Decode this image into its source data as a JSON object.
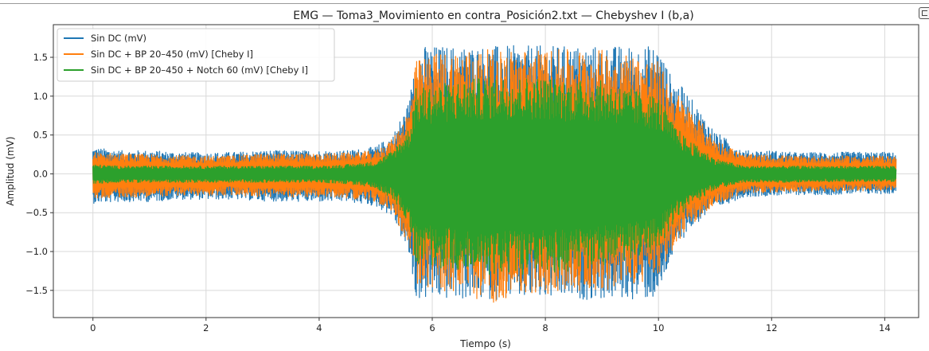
{
  "colors": {
    "sin_dc": "#1f77b4",
    "bp": "#ff7f0e",
    "notch": "#2ca02c",
    "grid": "#d9d9d9",
    "axes": "#333333"
  },
  "toolbar": {
    "corner_icon": "copy-icon"
  },
  "chart_data": {
    "type": "line",
    "title": "EMG — Toma3_Movimiento en contra_Posición2.txt — Chebyshev I (b,a)",
    "xlabel": "Tiempo (s)",
    "ylabel": "Amplitud (mV)",
    "xlim": [
      -0.7,
      14.6
    ],
    "ylim": [
      -1.85,
      1.92
    ],
    "grid": true,
    "legend_position": "top-left",
    "x_ticks": [
      0,
      2,
      4,
      6,
      8,
      10,
      12,
      14
    ],
    "x_tick_labels": [
      "0",
      "2",
      "4",
      "6",
      "8",
      "10",
      "12",
      "14"
    ],
    "y_ticks": [
      -1.5,
      -1.0,
      -0.5,
      0.0,
      0.5,
      1.0,
      1.5
    ],
    "y_tick_labels": [
      "−1.5",
      "−1.0",
      "−0.5",
      "0.0",
      "0.5",
      "1.0",
      "1.5"
    ],
    "series": [
      {
        "name": "Sin DC (mV)",
        "color": "#1f77b4",
        "envelope_x": [
          0,
          0.5,
          1,
          1.5,
          2,
          2.5,
          3,
          3.5,
          4,
          4.5,
          5,
          5.3,
          5.6,
          5.7,
          6,
          6.5,
          7,
          7.5,
          8,
          8.5,
          9,
          9.5,
          10,
          10.2,
          10.5,
          11,
          11.5,
          12,
          12.5,
          13,
          13.5,
          14,
          14.2
        ],
        "envelope_upper": [
          0.34,
          0.3,
          0.3,
          0.28,
          0.27,
          0.28,
          0.3,
          0.3,
          0.3,
          0.3,
          0.35,
          0.5,
          0.95,
          1.65,
          1.65,
          1.65,
          1.65,
          1.65,
          1.65,
          1.65,
          1.65,
          1.65,
          1.65,
          1.3,
          1.05,
          0.55,
          0.3,
          0.3,
          0.27,
          0.28,
          0.28,
          0.28,
          0.27
        ],
        "envelope_lower": [
          -0.38,
          -0.36,
          -0.36,
          -0.33,
          -0.33,
          -0.33,
          -0.35,
          -0.36,
          -0.36,
          -0.36,
          -0.42,
          -0.55,
          -1.1,
          -1.62,
          -1.62,
          -1.62,
          -1.62,
          -1.62,
          -1.62,
          -1.62,
          -1.62,
          -1.62,
          -1.62,
          -1.15,
          -0.75,
          -0.45,
          -0.3,
          -0.28,
          -0.27,
          -0.27,
          -0.26,
          -0.26,
          -0.25
        ]
      },
      {
        "name": "Sin DC + BP 20–450 (mV) [Cheby I]",
        "color": "#ff7f0e",
        "envelope_x": [
          0,
          0.5,
          1,
          1.5,
          2,
          2.5,
          3,
          3.5,
          4,
          4.5,
          5,
          5.3,
          5.6,
          5.7,
          6,
          6.5,
          7,
          7.5,
          8,
          8.5,
          9,
          9.5,
          10,
          10.2,
          10.5,
          11,
          11.5,
          12,
          12.5,
          13,
          13.5,
          14,
          14.2
        ],
        "envelope_upper": [
          0.28,
          0.26,
          0.25,
          0.24,
          0.23,
          0.24,
          0.26,
          0.26,
          0.26,
          0.27,
          0.3,
          0.45,
          0.85,
          1.45,
          1.55,
          1.6,
          1.6,
          1.6,
          1.6,
          1.6,
          1.6,
          1.55,
          1.45,
          1.15,
          0.9,
          0.45,
          0.25,
          0.24,
          0.23,
          0.23,
          0.23,
          0.23,
          0.22
        ],
        "envelope_lower": [
          -0.32,
          -0.3,
          -0.3,
          -0.28,
          -0.28,
          -0.28,
          -0.3,
          -0.3,
          -0.3,
          -0.31,
          -0.36,
          -0.5,
          -0.95,
          -1.45,
          -1.5,
          -1.55,
          -1.68,
          -1.55,
          -1.55,
          -1.5,
          -1.5,
          -1.45,
          -1.35,
          -1.05,
          -0.7,
          -0.4,
          -0.26,
          -0.24,
          -0.23,
          -0.23,
          -0.22,
          -0.22,
          -0.21
        ]
      },
      {
        "name": "Sin DC + BP 20–450 + Notch 60 (mV) [Cheby I]",
        "color": "#2ca02c",
        "envelope_x": [
          0,
          0.5,
          1,
          1.5,
          2,
          2.5,
          3,
          3.5,
          4,
          4.5,
          5,
          5.3,
          5.6,
          5.7,
          6,
          6.5,
          7,
          7.5,
          8,
          8.5,
          9,
          9.5,
          10,
          10.2,
          10.5,
          11,
          11.5,
          12,
          12.5,
          13,
          13.5,
          14,
          14.2
        ],
        "envelope_upper": [
          0.12,
          0.1,
          0.1,
          0.1,
          0.1,
          0.1,
          0.1,
          0.1,
          0.1,
          0.12,
          0.16,
          0.3,
          0.6,
          1.1,
          1.15,
          1.2,
          1.25,
          1.25,
          1.25,
          1.2,
          1.2,
          1.1,
          1.0,
          0.7,
          0.45,
          0.2,
          0.1,
          0.1,
          0.1,
          0.1,
          0.1,
          0.1,
          0.1
        ],
        "envelope_lower": [
          -0.13,
          -0.11,
          -0.11,
          -0.11,
          -0.11,
          -0.11,
          -0.11,
          -0.11,
          -0.11,
          -0.13,
          -0.18,
          -0.32,
          -0.65,
          -1.15,
          -1.2,
          -1.25,
          -1.3,
          -1.3,
          -1.3,
          -1.25,
          -1.2,
          -1.1,
          -1.0,
          -0.7,
          -0.45,
          -0.2,
          -0.11,
          -0.11,
          -0.11,
          -0.1,
          -0.1,
          -0.1,
          -0.1
        ]
      }
    ]
  }
}
